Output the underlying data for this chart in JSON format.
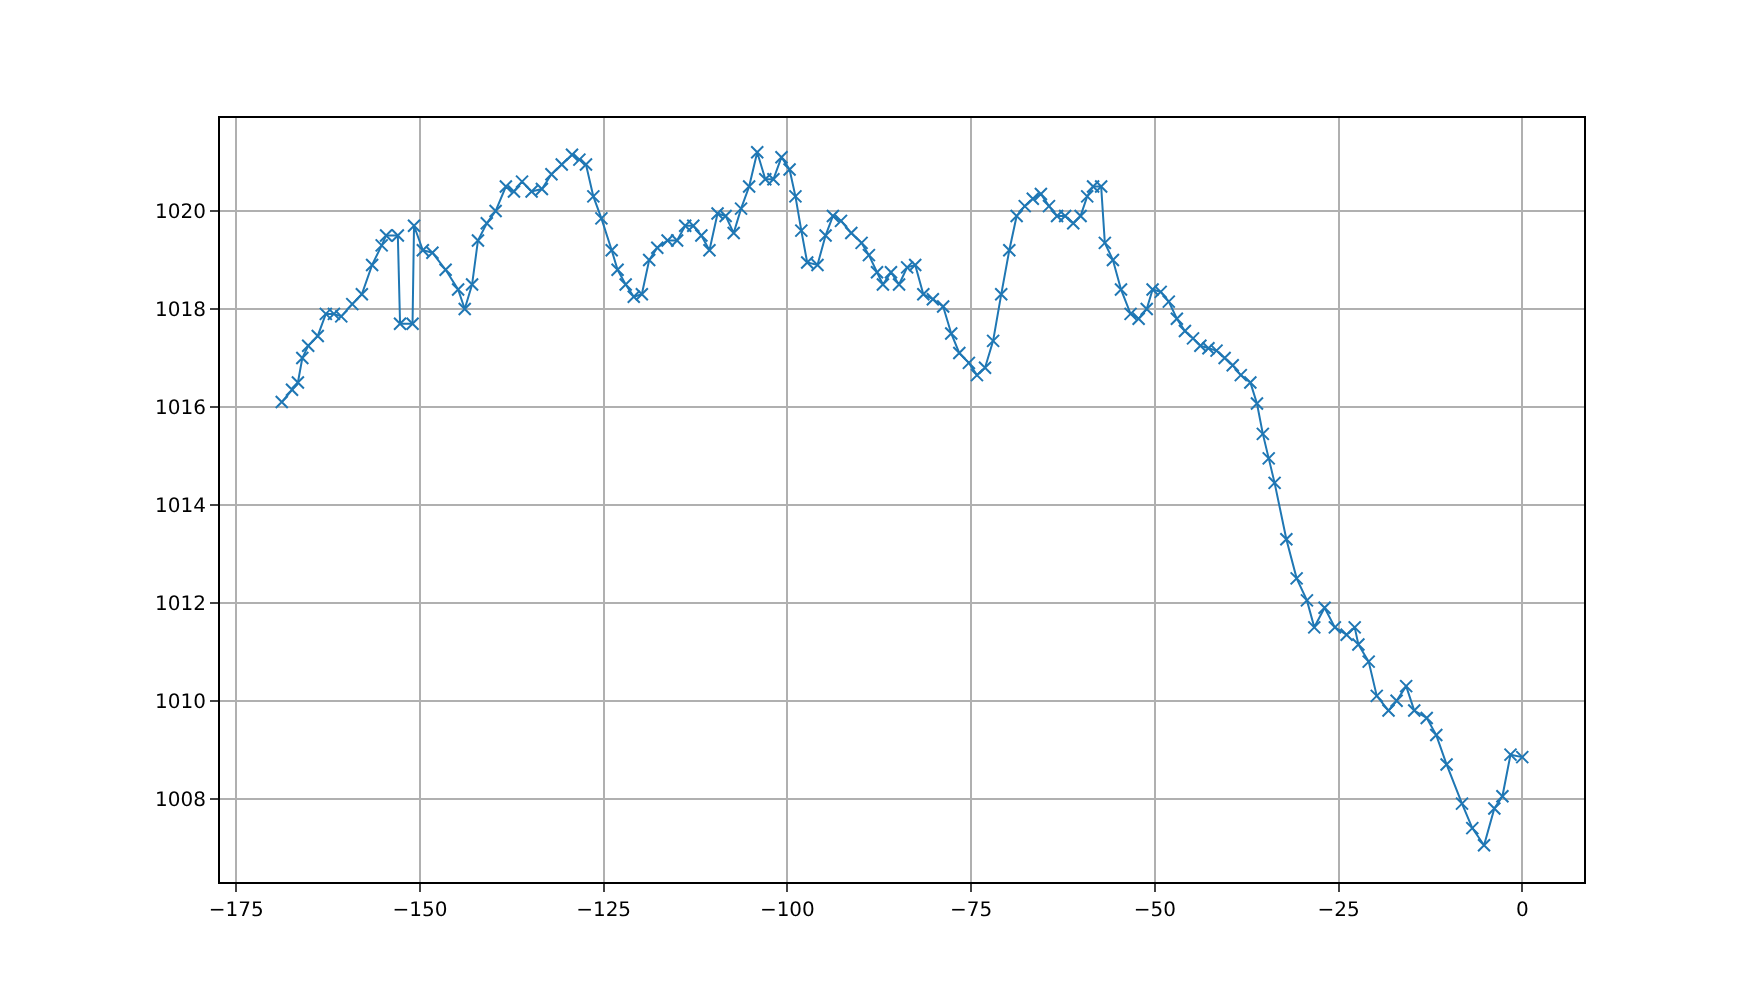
{
  "chart_data": {
    "type": "line",
    "marker": "cross",
    "line_style": "solid",
    "grid": true,
    "legend": false,
    "xlim": [
      -177.2,
      8.4
    ],
    "xticks": [
      {
        "value": -175,
        "label": "−175"
      },
      {
        "value": -150,
        "label": "−150"
      },
      {
        "value": -125,
        "label": "−125"
      },
      {
        "value": -100,
        "label": "−100"
      },
      {
        "value": -75,
        "label": "−75"
      },
      {
        "value": -50,
        "label": "−50"
      },
      {
        "value": -25,
        "label": "−25"
      },
      0
    ],
    "ylim": [
      1006.3,
      1021.9
    ],
    "yticks": [
      1008,
      1010,
      1012,
      1014,
      1016,
      1018,
      1020
    ],
    "series": [
      {
        "color": "#1f77b4",
        "x": [
          -168.8,
          -167.4,
          -166.6,
          -166,
          -165.2,
          -163.9,
          -162.8,
          -161.7,
          -160.7,
          -159.2,
          -157.9,
          -156.5,
          -155.2,
          -154.6,
          -153.0,
          -152.7,
          -151,
          -150.8,
          -149.6,
          -148.3,
          -146.5,
          -144.8,
          -143.9,
          -142.9,
          -142.1,
          -140.9,
          -139.7,
          -138.3,
          -137.2,
          -136.1,
          -134.8,
          -133.4,
          -132.1,
          -130.7,
          -129.3,
          -128.3,
          -127.4,
          -126.4,
          -125.3,
          -123.9,
          -123.1,
          -122.0,
          -120.9,
          -119.8,
          -118.8,
          -117.7,
          -116.3,
          -115.0,
          -113.9,
          -112.8,
          -111.7,
          -110.6,
          -109.5,
          -108.4,
          -107.3,
          -106.3,
          -105.2,
          -104.1,
          -103.0,
          -101.9,
          -100.8,
          -99.7,
          -98.9,
          -98.1,
          -97.3,
          -95.9,
          -94.8,
          -93.8,
          -92.7,
          -91.3,
          -89.9,
          -88.9,
          -87.8,
          -87.0,
          -85.9,
          -84.8,
          -83.7,
          -82.6,
          -81.5,
          -80.2,
          -78.8,
          -77.7,
          -76.6,
          -75.3,
          -74.2,
          -73.1,
          -72.0,
          -70.9,
          -69.8,
          -68.8,
          -67.7,
          -66.6,
          -65.5,
          -64.4,
          -63.3,
          -62.2,
          -61.1,
          -60.1,
          -59.2,
          -58.4,
          -57.3,
          -56.8,
          -55.7,
          -54.6,
          -53.3,
          -52.2,
          -51.1,
          -50.3,
          -49.2,
          -48.1,
          -47.0,
          -45.9,
          -44.8,
          -43.8,
          -42.7,
          -41.6,
          -40.5,
          -39.4,
          -38.3,
          -37.0,
          -36.1,
          -35.3,
          -34.5,
          -33.7,
          -32.1,
          -30.7,
          -29.3,
          -28.3,
          -26.9,
          -25.5,
          -23.9,
          -22.8,
          -22.3,
          -20.9,
          -19.8,
          -18.2,
          -17.1,
          -15.8,
          -14.7,
          -13.0,
          -11.7,
          -10.3,
          -8.2,
          -6.8,
          -5.2,
          -3.8,
          -2.7,
          -1.6,
          0
        ],
        "values": [
          1016.1,
          1016.35,
          1016.5,
          1017.0,
          1017.25,
          1017.45,
          1017.9,
          1017.9,
          1017.85,
          1018.1,
          1018.3,
          1018.9,
          1019.3,
          1019.5,
          1019.5,
          1017.7,
          1017.7,
          1019.7,
          1019.2,
          1019.15,
          1018.8,
          1018.4,
          1018.0,
          1018.5,
          1019.4,
          1019.75,
          1020.0,
          1020.5,
          1020.4,
          1020.6,
          1020.4,
          1020.45,
          1020.75,
          1020.95,
          1021.15,
          1021.05,
          1020.95,
          1020.3,
          1019.85,
          1019.2,
          1018.8,
          1018.5,
          1018.25,
          1018.3,
          1019.0,
          1019.25,
          1019.4,
          1019.4,
          1019.7,
          1019.7,
          1019.5,
          1019.2,
          1019.95,
          1019.9,
          1019.55,
          1020.05,
          1020.5,
          1021.2,
          1020.65,
          1020.65,
          1021.1,
          1020.85,
          1020.3,
          1019.6,
          1018.95,
          1018.9,
          1019.5,
          1019.9,
          1019.8,
          1019.55,
          1019.35,
          1019.1,
          1018.75,
          1018.5,
          1018.75,
          1018.5,
          1018.85,
          1018.9,
          1018.3,
          1018.2,
          1018.05,
          1017.5,
          1017.1,
          1016.9,
          1016.65,
          1016.8,
          1017.35,
          1018.3,
          1019.2,
          1019.9,
          1020.1,
          1020.25,
          1020.35,
          1020.1,
          1019.9,
          1019.9,
          1019.75,
          1019.9,
          1020.3,
          1020.5,
          1020.5,
          1019.35,
          1019.0,
          1018.4,
          1017.9,
          1017.8,
          1018.0,
          1018.4,
          1018.35,
          1018.15,
          1017.8,
          1017.55,
          1017.4,
          1017.25,
          1017.2,
          1017.15,
          1017.0,
          1016.85,
          1016.65,
          1016.5,
          1016.07,
          1015.45,
          1014.95,
          1014.45,
          1013.3,
          1012.5,
          1012.05,
          1011.5,
          1011.9,
          1011.5,
          1011.35,
          1011.5,
          1011.15,
          1010.8,
          1010.1,
          1009.8,
          1010.0,
          1010.3,
          1009.8,
          1009.65,
          1009.3,
          1008.7,
          1007.9,
          1007.4,
          1007.05,
          1007.8,
          1008.05,
          1008.9,
          1008.85
        ]
      }
    ]
  }
}
